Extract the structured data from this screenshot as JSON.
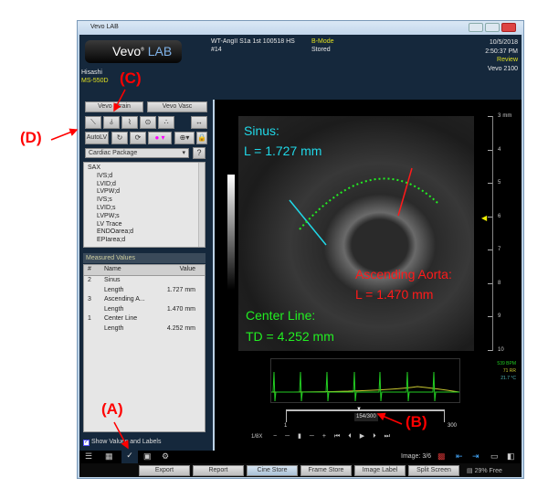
{
  "window": {
    "title": "Vevo LAB"
  },
  "header": {
    "logo": "Vevo LAB",
    "user": "Hisashi",
    "transducer": "MS-550D",
    "study": "WT-AngII S1a 1st 100518 HS",
    "series": "#14",
    "mode": "B-Mode",
    "status": "Stored",
    "date": "10/5/2018",
    "time": "2:50:37 PM",
    "state": "Review",
    "system": "Vevo 2100"
  },
  "left": {
    "vevo_strain": "Vevo Strain",
    "vevo_vasc": "Vevo Vasc",
    "autolv": "AutoLV",
    "package": "Cardiac Package",
    "help": "?",
    "list": [
      "SAX",
      "IVS;d",
      "LVID;d",
      "LVPW;d",
      "IVS;s",
      "LVID;s",
      "LVPW;s",
      "LV Trace",
      "ENDOarea;d",
      "EPIarea;d"
    ],
    "measured_title": "Measured Values",
    "columns": [
      "#",
      "Name",
      "Value"
    ],
    "rows": [
      [
        "2",
        "Sinus",
        ""
      ],
      [
        "",
        "Length",
        "1.727 mm"
      ],
      [
        "3",
        "Ascending A...",
        ""
      ],
      [
        "",
        "Length",
        "1.470 mm"
      ],
      [
        "1",
        "Center Line",
        ""
      ],
      [
        "",
        "Length",
        "4.252 mm"
      ]
    ],
    "show_values": "Show Values and Labels"
  },
  "image": {
    "sinus_title": "Sinus:",
    "sinus_value": "L = 1.727 mm",
    "aorta_title": "Ascending Aorta:",
    "aorta_value": "L = 1.470 mm",
    "center_title": "Center Line:",
    "center_value": "TD = 4.252 mm",
    "scale_unit": "mm",
    "scale": [
      "3",
      "4",
      "5",
      "6",
      "7",
      "8",
      "9",
      "10"
    ],
    "bpm": "539 BPM",
    "rr": "71 RR",
    "temp": "21.7 °C",
    "frame": "154/300",
    "frame_start": "1",
    "frame_end": "300",
    "speed": "1/8X",
    "image_count": "Image: 3/6",
    "colors": {
      "sinus": "#20d8e8",
      "aorta": "#ff1a1a",
      "center": "#22ee22"
    }
  },
  "buttons": [
    "Export",
    "Report",
    "Cine Store",
    "Frame Store",
    "Image Label",
    "Split Screen"
  ],
  "disk": "29% Free",
  "annotations": {
    "a": "(A)",
    "b": "(B)",
    "c": "(C)",
    "d": "(D)"
  }
}
